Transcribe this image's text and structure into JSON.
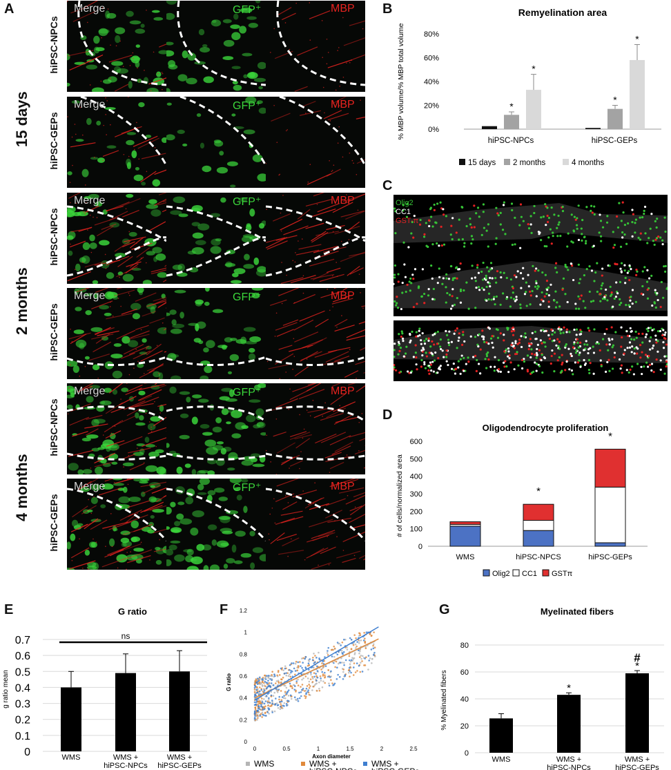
{
  "panel_letters": {
    "a": "A",
    "b": "B",
    "c": "C",
    "d": "D",
    "e": "E",
    "f": "F",
    "g": "G"
  },
  "panel_a": {
    "timepoints": [
      "15 days",
      "2 months",
      "4 months"
    ],
    "cell_types": [
      "hiPSC-NPCs",
      "hiPSC-GEPs",
      "hiPSC-NPCs",
      "hiPSC-GEPs",
      "hiPSC-NPCs",
      "hiPSC-GEPs"
    ],
    "channels": [
      "Merge",
      "GFP⁺",
      "MBP"
    ],
    "colors": {
      "merge": "#d4d4d4",
      "gfp": "#3bd63b",
      "mbp": "#e8231f"
    }
  },
  "panel_c": {
    "legend": [
      {
        "label": "Olig2",
        "color": "#36c236"
      },
      {
        "label": "CC1",
        "color": "#ffffff"
      },
      {
        "label": "GST-π",
        "color": "#e32222"
      }
    ]
  },
  "chart_data": [
    {
      "id": "remyelination",
      "type": "bar",
      "title": "Remyelination area",
      "ylabel": "% MBP volume/% MBP total volume",
      "xlabel": "",
      "ylim": [
        0,
        80
      ],
      "yticks": [
        "0%",
        "20%",
        "40%",
        "60%",
        "80%"
      ],
      "ytick_values": [
        0,
        20,
        40,
        60,
        80
      ],
      "categories": [
        "hiPSC-NPCs",
        "hiPSC-GEPs"
      ],
      "series": [
        {
          "name": "15 days",
          "color": "#111111",
          "values": [
            2.5,
            1.0
          ],
          "errors": [
            0,
            0
          ],
          "sig": [
            "",
            ""
          ]
        },
        {
          "name": "2 months",
          "color": "#a3a3a3",
          "values": [
            12,
            17
          ],
          "errors": [
            2.5,
            3
          ],
          "sig": [
            "*",
            "*"
          ]
        },
        {
          "name": "4 months",
          "color": "#d9d9d9",
          "values": [
            33,
            58
          ],
          "errors": [
            13,
            13
          ],
          "sig": [
            "*",
            "*"
          ]
        }
      ],
      "legend_position": "bottom"
    },
    {
      "id": "oligodendrocyte",
      "type": "bar",
      "stacked": true,
      "title": "Oligodendrocyte proliferation",
      "ylabel": "# of cells/normalized area",
      "xlabel": "",
      "ylim": [
        0,
        600
      ],
      "yticks": [
        "0",
        "100",
        "200",
        "300",
        "400",
        "500",
        "600"
      ],
      "ytick_values": [
        0,
        100,
        200,
        300,
        400,
        500,
        600
      ],
      "categories": [
        "WMS",
        "hiPSC-NPCS",
        "hiPSC-GEPs"
      ],
      "series": [
        {
          "name": "Olig2",
          "color": "#4c72c4",
          "values": [
            115,
            90,
            20
          ]
        },
        {
          "name": "CC1",
          "color": "#ffffff",
          "values": [
            10,
            58,
            318
          ]
        },
        {
          "name": "GSTπ",
          "color": "#e03030",
          "values": [
            15,
            92,
            217
          ]
        }
      ],
      "sig": [
        "",
        "*",
        "*"
      ],
      "legend_position": "bottom"
    },
    {
      "id": "gratio",
      "type": "bar",
      "title": "G ratio",
      "ylabel": "g ratio mean",
      "xlabel": "",
      "ylim": [
        0,
        0.7
      ],
      "yticks": [
        "0",
        "0.1",
        "0.2",
        "0.3",
        "0.4",
        "0.5",
        "0.6",
        "0.7"
      ],
      "ytick_values": [
        0,
        0.1,
        0.2,
        0.3,
        0.4,
        0.5,
        0.6,
        0.7
      ],
      "categories": [
        "WMS",
        "WMS +\nhiPSC-NPCs",
        "WMS +\nhiPSC-GEPs"
      ],
      "values": [
        0.4,
        0.49,
        0.5
      ],
      "errors": [
        0.1,
        0.12,
        0.13
      ],
      "color": "#000000",
      "annotation": "ns"
    },
    {
      "id": "scatter",
      "type": "scatter",
      "title": "",
      "xlabel": "Axon diameter",
      "ylabel": "G ratio",
      "xlim": [
        0,
        2.5
      ],
      "ylim": [
        0,
        1.2
      ],
      "xticks": [
        "0",
        "0.5",
        "1",
        "1.5",
        "2",
        "2.5"
      ],
      "xtick_values": [
        0,
        0.5,
        1,
        1.5,
        2,
        2.5
      ],
      "yticks": [
        "0",
        "0.2",
        "0.4",
        "0.6",
        "0.8",
        "1",
        "1.2"
      ],
      "ytick_values": [
        0,
        0.2,
        0.4,
        0.6,
        0.8,
        1,
        1.2
      ],
      "series": [
        {
          "name": "WMS",
          "color": "#b5b5b5"
        },
        {
          "name": "WMS +\nhiPSC-NPCs",
          "color": "#e08a3c"
        },
        {
          "name": "WMS +\nhiPSC-GEPs",
          "color": "#3f7fd0"
        }
      ],
      "trendlines": [
        {
          "series": "WMS",
          "x": [
            0,
            1.9
          ],
          "y": [
            0.4,
            0.92
          ]
        },
        {
          "series": "WMS +\nhiPSC-NPCs",
          "x": [
            0,
            1.95
          ],
          "y": [
            0.4,
            0.94
          ]
        },
        {
          "series": "WMS +\nhiPSC-GEPs",
          "x": [
            0,
            1.95
          ],
          "y": [
            0.38,
            1.05
          ]
        }
      ]
    },
    {
      "id": "myelinated",
      "type": "bar",
      "title": "Myelinated fibers",
      "ylabel": "% Myelinated fibers",
      "xlabel": "",
      "ylim": [
        0,
        80
      ],
      "yticks": [
        "0",
        "20",
        "40",
        "60",
        "80"
      ],
      "ytick_values": [
        0,
        20,
        40,
        60,
        80
      ],
      "categories": [
        "WMS",
        "WMS +\nhiPSC-NPCs",
        "WMS +\nhiPSC-GEPs"
      ],
      "values": [
        25.5,
        43,
        59
      ],
      "errors": [
        3.5,
        1.5,
        2
      ],
      "color": "#000000",
      "sig": [
        "",
        "*",
        "*"
      ],
      "sig2": [
        "",
        "",
        "#"
      ]
    }
  ]
}
